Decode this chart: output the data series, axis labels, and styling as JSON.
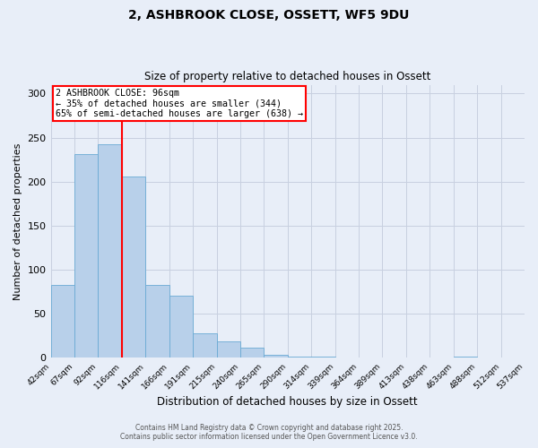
{
  "title": "2, ASHBROOK CLOSE, OSSETT, WF5 9DU",
  "subtitle": "Size of property relative to detached houses in Ossett",
  "xlabel": "Distribution of detached houses by size in Ossett",
  "ylabel": "Number of detached properties",
  "bin_labels": [
    "42sqm",
    "67sqm",
    "92sqm",
    "116sqm",
    "141sqm",
    "166sqm",
    "191sqm",
    "215sqm",
    "240sqm",
    "265sqm",
    "290sqm",
    "314sqm",
    "339sqm",
    "364sqm",
    "389sqm",
    "413sqm",
    "438sqm",
    "463sqm",
    "488sqm",
    "512sqm",
    "537sqm"
  ],
  "bar_values": [
    83,
    231,
    242,
    206,
    83,
    71,
    28,
    19,
    12,
    4,
    2,
    2,
    0,
    0,
    0,
    0,
    0,
    2,
    0,
    0
  ],
  "bar_color": "#b8d0ea",
  "bar_edge_color": "#6aaad4",
  "background_color": "#e8eef8",
  "grid_color": "#c8d0e0",
  "red_line_x": 3.0,
  "ylim": [
    0,
    310
  ],
  "yticks": [
    0,
    50,
    100,
    150,
    200,
    250,
    300
  ],
  "annotation_line1": "2 ASHBROOK CLOSE: 96sqm",
  "annotation_line2": "← 35% of detached houses are smaller (344)",
  "annotation_line3": "65% of semi-detached houses are larger (638) →",
  "footer1": "Contains HM Land Registry data © Crown copyright and database right 2025.",
  "footer2": "Contains public sector information licensed under the Open Government Licence v3.0."
}
